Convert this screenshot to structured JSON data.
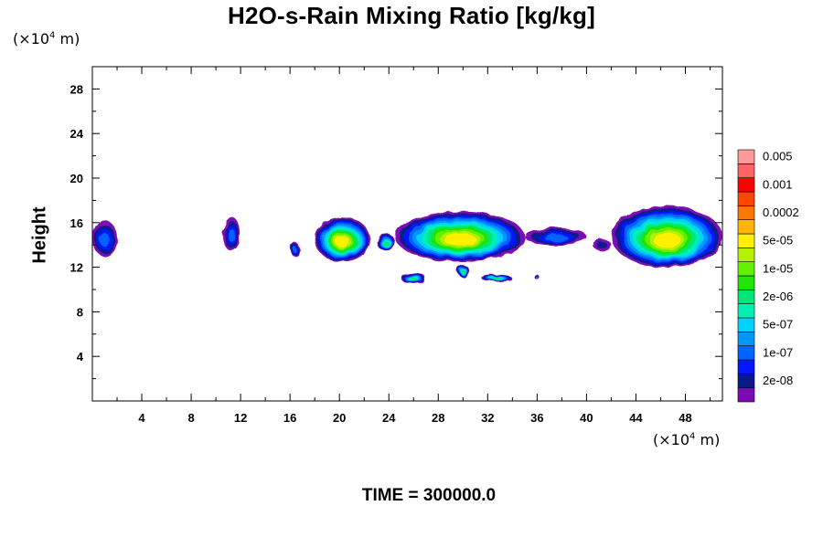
{
  "chart_data": {
    "type": "heatmap",
    "title": "H2O-s-Rain Mixing Ratio [kg/kg]",
    "ylabel": "Height",
    "y_unit": {
      "prefix": "(×10",
      "exp": "4",
      "suffix": " m)"
    },
    "x_unit": {
      "prefix": "(×10",
      "exp": "4",
      "suffix": " m)"
    },
    "xlim": [
      0,
      51
    ],
    "ylim": [
      0,
      30
    ],
    "x_ticks": [
      4,
      8,
      12,
      16,
      20,
      24,
      28,
      32,
      36,
      40,
      44,
      48
    ],
    "y_ticks": [
      4,
      8,
      12,
      16,
      20,
      24,
      28
    ],
    "x_tick_labels": [
      "4",
      "8",
      "12",
      "16",
      "20",
      "24",
      "28",
      "32",
      "36",
      "40",
      "44",
      "48"
    ],
    "y_tick_labels": [
      "4",
      "8",
      "12",
      "16",
      "20",
      "24",
      "28"
    ],
    "colorbar": {
      "colors": [
        "#7b0ab4",
        "#0a1a8c",
        "#0018ff",
        "#0064ff",
        "#0096ff",
        "#00d2ff",
        "#00f0b4",
        "#00e678",
        "#1ee600",
        "#64f000",
        "#b4f000",
        "#fff000",
        "#ffb400",
        "#ff7800",
        "#ff4600",
        "#ff0000",
        "#ff6464",
        "#ff9a9a"
      ],
      "labels": [
        "2e-08",
        "1e-07",
        "5e-07",
        "2e-06",
        "1e-05",
        "5e-05",
        "0.0002",
        "0.001",
        "0.005"
      ]
    },
    "regions": [
      {
        "x": [
          0.0,
          2.0
        ],
        "y": [
          13.0,
          16.2
        ],
        "peak": "1e-07"
      },
      {
        "x": [
          10.5,
          12.0
        ],
        "y": [
          13.5,
          16.5
        ],
        "peak": "1e-07"
      },
      {
        "x": [
          16.0,
          16.8
        ],
        "y": [
          13.0,
          14.2
        ],
        "peak": "1e-07"
      },
      {
        "x": [
          18.0,
          22.5
        ],
        "y": [
          12.5,
          16.5
        ],
        "peak": "5e-05"
      },
      {
        "x": [
          23.0,
          24.5
        ],
        "y": [
          13.5,
          15.0
        ],
        "peak": "2e-06"
      },
      {
        "x": [
          24.5,
          35.0
        ],
        "y": [
          12.5,
          17.0
        ],
        "peak": "5e-05"
      },
      {
        "x": [
          35.0,
          40.0
        ],
        "y": [
          14.0,
          15.5
        ],
        "peak": "1e-07"
      },
      {
        "x": [
          40.5,
          42.0
        ],
        "y": [
          13.5,
          14.5
        ],
        "peak": "2e-08"
      },
      {
        "x": [
          42.0,
          51.0
        ],
        "y": [
          12.0,
          17.5
        ],
        "peak": "5e-05"
      },
      {
        "x": [
          25.0,
          27.0
        ],
        "y": [
          10.5,
          11.5
        ],
        "peak": "2e-06"
      },
      {
        "x": [
          29.5,
          30.5
        ],
        "y": [
          11.2,
          12.2
        ],
        "peak": "2e-06"
      },
      {
        "x": [
          31.5,
          34.0
        ],
        "y": [
          10.7,
          11.3
        ],
        "peak": "2e-06"
      },
      {
        "x": [
          35.8,
          36.2
        ],
        "y": [
          10.9,
          11.3
        ],
        "peak": "1e-07"
      }
    ]
  },
  "footer": {
    "time_label": "TIME = 300000.0"
  }
}
